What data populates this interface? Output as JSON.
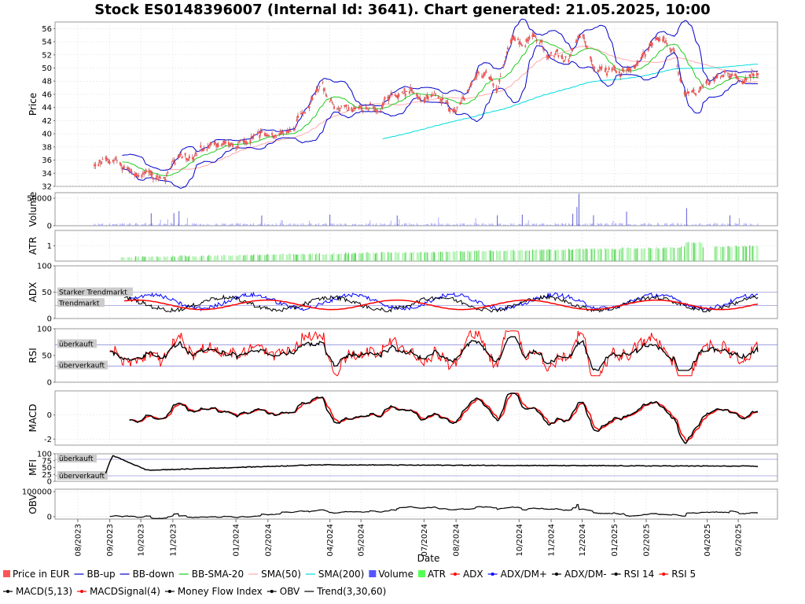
{
  "title": "Stock ES0148396007 (Internal Id: 3641). Chart generated: 21.05.2025, 10:00",
  "xaxis": {
    "label": "Date",
    "ticks": [
      "08/2023",
      "09/2023",
      "10/2023",
      "11/2023",
      "01/2024",
      "02/2024",
      "04/2024",
      "05/2024",
      "07/2024",
      "08/2024",
      "10/2024",
      "11/2024",
      "12/2024",
      "01/2025",
      "02/2025",
      "04/2025",
      "05/2025"
    ]
  },
  "panels": {
    "price": {
      "label": "Price",
      "ticks": [
        "32",
        "34",
        "36",
        "38",
        "40",
        "42",
        "44",
        "46",
        "48",
        "50",
        "52",
        "54",
        "56"
      ]
    },
    "volume": {
      "label": "Volume",
      "ticks": [
        "0",
        "50000"
      ]
    },
    "atr": {
      "label": "ATR",
      "ticks": [
        "1"
      ]
    },
    "adx": {
      "label": "ADX",
      "ticks": [
        "0",
        "25",
        "50",
        "100"
      ],
      "zone_strong": "Starker Trendmarkt",
      "zone_trend": "Trendmarkt"
    },
    "rsi": {
      "label": "RSI",
      "ticks": [
        "0",
        "50",
        "100"
      ],
      "zone_over": "überkauft",
      "zone_under": "überverkauft"
    },
    "macd": {
      "label": "MACD",
      "ticks": [
        "-2",
        "0"
      ]
    },
    "mfi": {
      "label": "MFI",
      "ticks": [
        "0",
        "25",
        "50",
        "75",
        "100"
      ],
      "zone_over": "überkauft",
      "zone_under": "überverkauft"
    },
    "obv": {
      "label": "OBV",
      "ticks": [
        "0",
        "100000"
      ]
    }
  },
  "legend": [
    {
      "label": "Price in EUR",
      "color": "#ff5555",
      "kind": "box"
    },
    {
      "label": "BB-up",
      "color": "#0000cc",
      "kind": "line"
    },
    {
      "label": "BB-down",
      "color": "#0000cc",
      "kind": "line"
    },
    {
      "label": "BB-SMA-20",
      "color": "#22cc22",
      "kind": "line"
    },
    {
      "label": "SMA(50)",
      "color": "#ffaaaa",
      "kind": "line"
    },
    {
      "label": "SMA(200)",
      "color": "#00dddd",
      "kind": "line"
    },
    {
      "label": "Volume",
      "color": "#5555ff",
      "kind": "box"
    },
    {
      "label": "ATR",
      "color": "#55ff55",
      "kind": "box"
    },
    {
      "label": "ADX",
      "color": "#ff0000",
      "kind": "dotline"
    },
    {
      "label": "ADX/DM+",
      "color": "#0000ff",
      "kind": "dotline"
    },
    {
      "label": "ADX/DM-",
      "color": "#000000",
      "kind": "dotline"
    },
    {
      "label": "RSI 14",
      "color": "#000000",
      "kind": "dotline"
    },
    {
      "label": "RSI 5",
      "color": "#ff0000",
      "kind": "dotline"
    },
    {
      "label": "MACD(5,13)",
      "color": "#000000",
      "kind": "dotline"
    },
    {
      "label": "MACDSignal(4)",
      "color": "#ff0000",
      "kind": "dotline"
    },
    {
      "label": "Money Flow Index",
      "color": "#000000",
      "kind": "dotline"
    },
    {
      "label": "OBV",
      "color": "#000000",
      "kind": "dotline"
    },
    {
      "label": "Trend(3,30,60)",
      "color": "#000000",
      "kind": "line"
    }
  ],
  "chart_data": {
    "type": "line",
    "x_range": [
      "2023-08",
      "2025-05"
    ],
    "price_ylim": [
      32,
      57
    ],
    "price_keypoints": [
      {
        "date": "2023-08-17",
        "close": 35.2
      },
      {
        "date": "2023-09-05",
        "close": 35.6
      },
      {
        "date": "2023-09-20",
        "close": 34.8
      },
      {
        "date": "2023-10-10",
        "close": 33.5
      },
      {
        "date": "2023-10-25",
        "close": 33.0
      },
      {
        "date": "2023-11-10",
        "close": 36.5
      },
      {
        "date": "2023-12-10",
        "close": 38.0
      },
      {
        "date": "2024-01-05",
        "close": 38.5
      },
      {
        "date": "2024-02-05",
        "close": 39.5
      },
      {
        "date": "2024-02-25",
        "close": 41.0
      },
      {
        "date": "2024-03-10",
        "close": 44.0
      },
      {
        "date": "2024-03-25",
        "close": 47.0
      },
      {
        "date": "2024-04-05",
        "close": 43.5
      },
      {
        "date": "2024-05-01",
        "close": 43.5
      },
      {
        "date": "2024-05-20",
        "close": 44.5
      },
      {
        "date": "2024-06-10",
        "close": 47.0
      },
      {
        "date": "2024-07-01",
        "close": 45.5
      },
      {
        "date": "2024-07-20",
        "close": 44.5
      },
      {
        "date": "2024-08-01",
        "close": 43.5
      },
      {
        "date": "2024-08-20",
        "close": 49.0
      },
      {
        "date": "2024-09-10",
        "close": 47.0
      },
      {
        "date": "2024-09-25",
        "close": 54.0
      },
      {
        "date": "2024-10-15",
        "close": 55.0
      },
      {
        "date": "2024-10-30",
        "close": 51.5
      },
      {
        "date": "2024-11-20",
        "close": 52.0
      },
      {
        "date": "2024-12-01",
        "close": 55.5
      },
      {
        "date": "2024-12-10",
        "close": 50.5
      },
      {
        "date": "2025-01-05",
        "close": 49.5
      },
      {
        "date": "2025-01-25",
        "close": 50.5
      },
      {
        "date": "2025-02-15",
        "close": 55.0
      },
      {
        "date": "2025-02-28",
        "close": 53.0
      },
      {
        "date": "2025-03-10",
        "close": 45.5
      },
      {
        "date": "2025-03-25",
        "close": 46.0
      },
      {
        "date": "2025-04-20",
        "close": 48.5
      },
      {
        "date": "2025-05-05",
        "close": 47.5
      },
      {
        "date": "2025-05-20",
        "close": 48.5
      }
    ],
    "volume_max": 60000,
    "adx_ylim": [
      0,
      100
    ],
    "rsi_ylim": [
      0,
      100
    ],
    "rsi_levels": [
      30,
      70
    ],
    "macd_ylim": [
      -2.5,
      2
    ],
    "mfi_ylim": [
      0,
      100
    ],
    "mfi_levels": [
      20,
      80
    ],
    "obv_ylim": [
      -10000,
      110000
    ]
  }
}
